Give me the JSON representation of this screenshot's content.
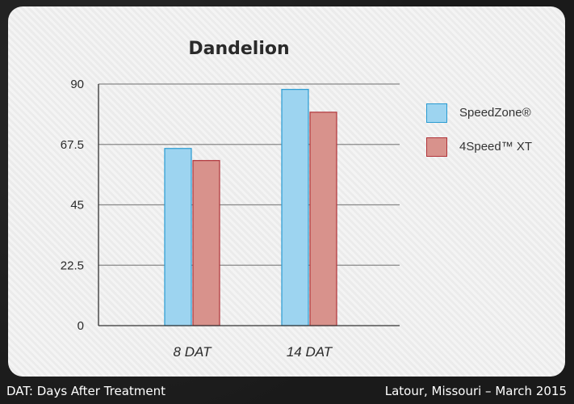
{
  "chart_data": {
    "type": "bar",
    "title": "Dandelion",
    "categories": [
      "8 DAT",
      "14 DAT"
    ],
    "series": [
      {
        "name": "SpeedZone®",
        "values": [
          66,
          88
        ],
        "color": "#9dd4f0",
        "stroke": "#2a9bd1"
      },
      {
        "name": "4Speed™ XT",
        "values": [
          61.5,
          79.5
        ],
        "color": "#d8928c",
        "stroke": "#b0343a"
      }
    ],
    "ylim": [
      0,
      90
    ],
    "yticks": [
      "0",
      "22.5",
      "45",
      "67.5",
      "90"
    ],
    "ytick_values": [
      0,
      22.5,
      45,
      67.5,
      90
    ],
    "grid": true,
    "legend_position": "right"
  },
  "footer": {
    "left": "DAT: Days After Treatment",
    "right": "Latour, Missouri – March 2015"
  }
}
